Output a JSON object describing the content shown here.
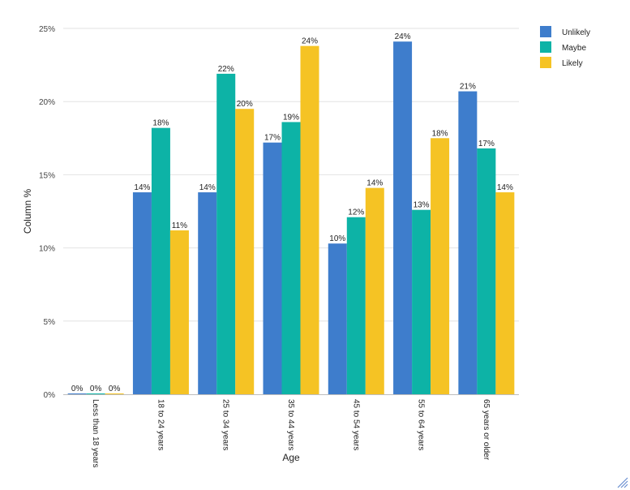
{
  "chart_data": {
    "type": "bar",
    "title": "",
    "xlabel": "Age",
    "ylabel": "Column %",
    "ylim": [
      0,
      25
    ],
    "yticks": [
      "0%",
      "5%",
      "10%",
      "15%",
      "20%",
      "25%"
    ],
    "categories": [
      "Less than 18 years",
      "18 to 24 years",
      "25 to 34 years",
      "35 to 44 years",
      "45 to 54 years",
      "55 to 64 years",
      "65 years or older"
    ],
    "series": [
      {
        "name": "Unlikely",
        "color": "#3e7dcc",
        "values": [
          0,
          13.8,
          13.8,
          17.2,
          10.3,
          24.1,
          20.7
        ],
        "labels": [
          "0%",
          "14%",
          "14%",
          "17%",
          "10%",
          "24%",
          "21%"
        ]
      },
      {
        "name": "Maybe",
        "color": "#0db3a6",
        "values": [
          0,
          18.2,
          21.9,
          18.6,
          12.1,
          12.6,
          16.8
        ],
        "labels": [
          "0%",
          "18%",
          "22%",
          "19%",
          "12%",
          "13%",
          "17%"
        ]
      },
      {
        "name": "Likely",
        "color": "#f5c324",
        "values": [
          0,
          11.2,
          19.5,
          23.8,
          14.1,
          17.5,
          13.8
        ],
        "labels": [
          "0%",
          "11%",
          "20%",
          "24%",
          "14%",
          "18%",
          "14%"
        ]
      }
    ],
    "legend_position": "top-right",
    "grid": true
  }
}
